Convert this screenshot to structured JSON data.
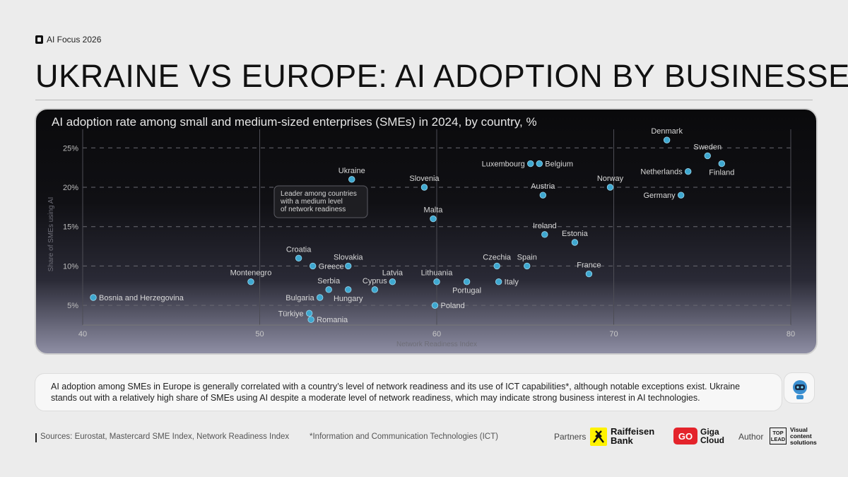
{
  "header": {
    "tag": "AI Focus 2026",
    "title": "UKRAINE VS EUROPE: AI ADOPTION BY BUSINESSES"
  },
  "chart_data": {
    "type": "scatter",
    "title": "AI adoption rate among small and medium-sized enterprises (SMEs) in 2024, by country, %",
    "xlabel": "Network Readiness Index",
    "ylabel": "Share of SMEs using AI",
    "xlim": [
      40,
      80
    ],
    "ylim": [
      2.5,
      27
    ],
    "x_ticks": [
      40,
      50,
      60,
      70,
      80
    ],
    "y_ticks": [
      5,
      10,
      15,
      20,
      25
    ],
    "y_tick_labels": [
      "5%",
      "10%",
      "15%",
      "20%",
      "25%"
    ],
    "marker_color": "#3fa8d0",
    "points": [
      {
        "name": "Denmark",
        "x": 73.0,
        "y": 26.0,
        "label_pos": "above"
      },
      {
        "name": "Sweden",
        "x": 75.3,
        "y": 24.0,
        "label_pos": "above"
      },
      {
        "name": "Finland",
        "x": 76.1,
        "y": 23.0,
        "label_pos": "below"
      },
      {
        "name": "Netherlands",
        "x": 74.2,
        "y": 22.0,
        "label_pos": "left"
      },
      {
        "name": "Germany",
        "x": 73.8,
        "y": 19.0,
        "label_pos": "left"
      },
      {
        "name": "Norway",
        "x": 69.8,
        "y": 20.0,
        "label_pos": "above"
      },
      {
        "name": "Luxembourg",
        "x": 65.3,
        "y": 23.0,
        "label_pos": "left"
      },
      {
        "name": "Belgium",
        "x": 65.8,
        "y": 23.0,
        "label_pos": "right"
      },
      {
        "name": "Austria",
        "x": 66.0,
        "y": 19.0,
        "label_pos": "above"
      },
      {
        "name": "Ireland",
        "x": 66.1,
        "y": 14.0,
        "label_pos": "above"
      },
      {
        "name": "Estonia",
        "x": 67.8,
        "y": 13.0,
        "label_pos": "above"
      },
      {
        "name": "France",
        "x": 68.6,
        "y": 9.0,
        "label_pos": "above"
      },
      {
        "name": "Spain",
        "x": 65.1,
        "y": 10.0,
        "label_pos": "above"
      },
      {
        "name": "Czechia",
        "x": 63.4,
        "y": 10.0,
        "label_pos": "above"
      },
      {
        "name": "Italy",
        "x": 63.5,
        "y": 8.0,
        "label_pos": "right"
      },
      {
        "name": "Portugal",
        "x": 61.7,
        "y": 8.0,
        "label_pos": "below"
      },
      {
        "name": "Lithuania",
        "x": 60.0,
        "y": 8.0,
        "label_pos": "above"
      },
      {
        "name": "Poland",
        "x": 59.9,
        "y": 5.0,
        "label_pos": "right"
      },
      {
        "name": "Slovenia",
        "x": 59.3,
        "y": 20.0,
        "label_pos": "above"
      },
      {
        "name": "Malta",
        "x": 59.8,
        "y": 16.0,
        "label_pos": "above"
      },
      {
        "name": "Ukraine",
        "x": 55.2,
        "y": 21.0,
        "label_pos": "above"
      },
      {
        "name": "Latvia",
        "x": 57.5,
        "y": 8.0,
        "label_pos": "above"
      },
      {
        "name": "Cyprus",
        "x": 56.5,
        "y": 7.0,
        "label_pos": "above"
      },
      {
        "name": "Hungary",
        "x": 55.0,
        "y": 7.0,
        "label_pos": "below"
      },
      {
        "name": "Serbia",
        "x": 53.9,
        "y": 7.0,
        "label_pos": "above"
      },
      {
        "name": "Slovakia",
        "x": 55.0,
        "y": 10.0,
        "label_pos": "above"
      },
      {
        "name": "Greece",
        "x": 53.0,
        "y": 10.0,
        "label_pos": "right"
      },
      {
        "name": "Croatia",
        "x": 52.2,
        "y": 11.0,
        "label_pos": "above"
      },
      {
        "name": "Bulgaria",
        "x": 53.4,
        "y": 6.0,
        "label_pos": "left"
      },
      {
        "name": "Türkiye",
        "x": 52.8,
        "y": 4.0,
        "label_pos": "left"
      },
      {
        "name": "Romania",
        "x": 52.9,
        "y": 3.2,
        "label_pos": "right"
      },
      {
        "name": "Montenegro",
        "x": 49.5,
        "y": 8.0,
        "label_pos": "above"
      },
      {
        "name": "Bosnia and Herzegovina",
        "x": 40.6,
        "y": 6.0,
        "label_pos": "right"
      }
    ],
    "annotation": {
      "text_lines": [
        "Leader among countries",
        "with a medium level",
        "of network readiness"
      ],
      "target": "Ukraine"
    }
  },
  "note": "AI adoption among SMEs in Europe is generally correlated with a country’s level of network readiness and its use of ICT capabilities*, although notable exceptions exist. Ukraine stands out with a relatively high share of SMEs using AI despite a moderate level of network readiness, which may indicate strong business interest in AI technologies.",
  "footer": {
    "sources": "Sources: Eurostat, Mastercard SME Index, Network Readiness Index",
    "footnote": "*Information and Communication Technologies (ICT)",
    "partners_label": "Partners",
    "partner1_line1": "Raiffeisen",
    "partner1_line2": "Bank",
    "partner2_mark": "GO",
    "partner2_line1": "Giga",
    "partner2_line2": "Cloud",
    "author_label": "Author",
    "author_mark_line1": "TOP",
    "author_mark_line2": "LEAD",
    "author_line1": "Visual",
    "author_line2": "content",
    "author_line3": "solutions"
  }
}
